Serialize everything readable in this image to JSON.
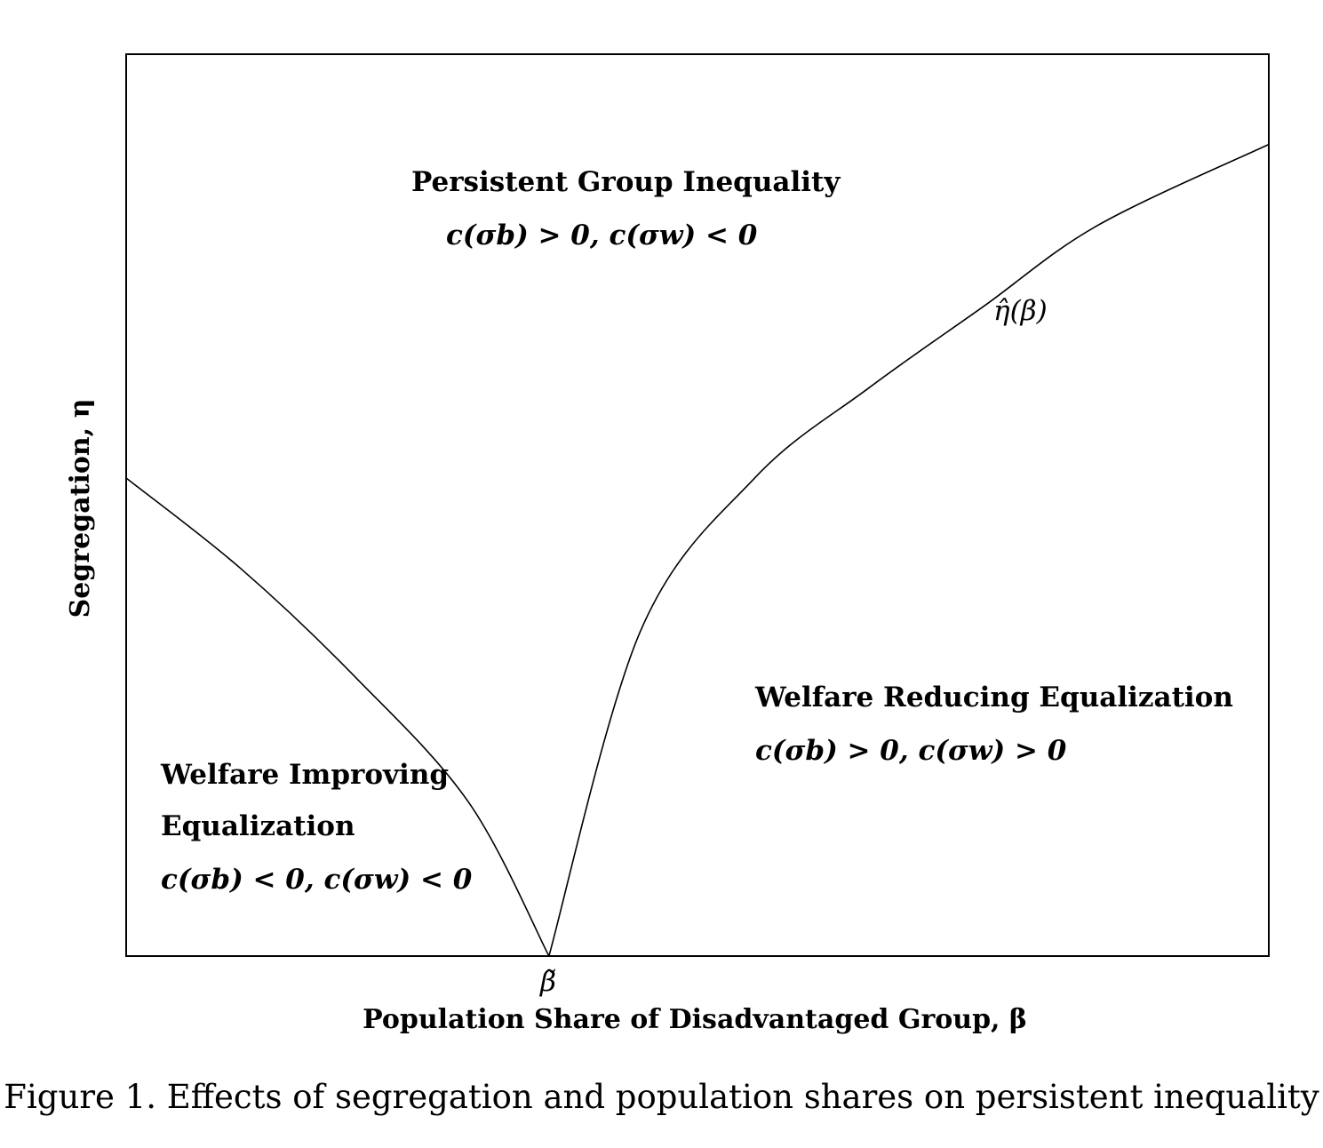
{
  "chart_data": {
    "type": "line",
    "xlabel": "Population Share of Disadvantaged Group, β",
    "ylabel": "Segregation, η",
    "x_tick_label": "β̃",
    "curve_label": "η̂(β)",
    "grid": false,
    "series": [
      {
        "name": "η̂(β)",
        "x": [
          0.0,
          0.1,
          0.2,
          0.3,
          0.37,
          0.45,
          0.55,
          0.65,
          0.75,
          0.85,
          1.0
        ],
        "y": [
          0.53,
          0.43,
          0.31,
          0.17,
          0.0,
          0.36,
          0.53,
          0.63,
          0.72,
          0.81,
          0.9
        ]
      }
    ],
    "regions": [
      {
        "title": "Persistent Group Inequality",
        "condition": "c(σb) > 0, c(σw) < 0"
      },
      {
        "title": "Welfare Reducing Equalization",
        "condition": "c(σb) > 0, c(σw) > 0"
      },
      {
        "title_line1": "Welfare Improving",
        "title_line2": "Equalization",
        "condition": "c(σb) < 0, c(σw) < 0"
      }
    ]
  },
  "caption": "Figure 1. Effects of segregation and population shares on persistent inequality",
  "colors": {
    "ink": "#000000",
    "background": "#ffffff"
  }
}
